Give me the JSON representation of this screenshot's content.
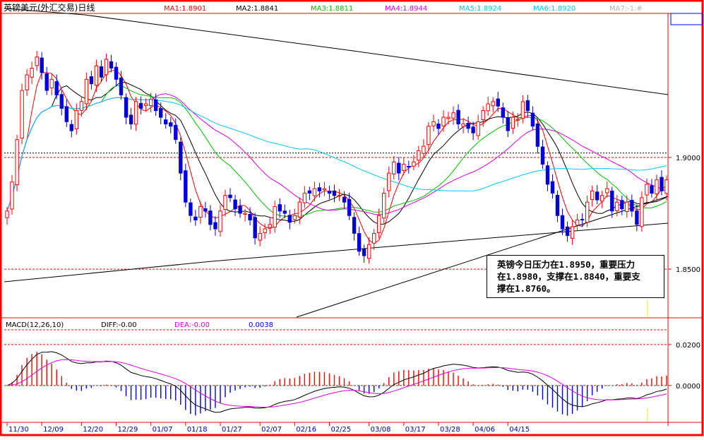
{
  "title": "英镑美元(外汇交易)日线",
  "ma_legend": [
    {
      "text": "MA1:1.8901",
      "color": "#ff0000"
    },
    {
      "text": "MA2:1.8841",
      "color": "#000000"
    },
    {
      "text": "MA3:1.8811",
      "color": "#00c000"
    },
    {
      "text": "MA4:1.8944",
      "color": "#e000e0"
    },
    {
      "text": "MA5:1.8924",
      "color": "#00c8ff"
    },
    {
      "text": "MA6:1.8920",
      "color": "#00c8ff"
    },
    {
      "text": "MA7:-1.#",
      "color": "#b4b4b4"
    }
  ],
  "macd_legend": [
    {
      "text": "MACD(12,26,10)",
      "color": "#000000"
    },
    {
      "text": "DIFF:-0.00",
      "color": "#000000"
    },
    {
      "text": "DEA:-0.00",
      "color": "#e000e0"
    },
    {
      "text": "0.0038",
      "color": "#0000ff"
    }
  ],
  "annotation": [
    "英镑今日压力在1.8950，重要压力",
    "在1.8980，支撑在1.8840，重要支",
    "撑在1.8760。"
  ],
  "colors": {
    "up": "#ff0000",
    "down": "#0000dd",
    "frame": "#ff0000",
    "ref_line": "#ff0000"
  },
  "chart_data": {
    "type": "candlestick",
    "price_axis": {
      "ticks": [
        "1.9000",
        "1.8500"
      ],
      "range": [
        1.8282,
        1.9645
      ]
    },
    "macd_axis": {
      "ticks": [
        "0.0200",
        "0.0000"
      ],
      "range": [
        -0.018,
        0.0272
      ]
    },
    "x_labels": [
      "11/30",
      "12/09",
      "12/20",
      "12/29",
      "01/07",
      "01/18",
      "01/27",
      "02/07",
      "02/16",
      "02/25",
      "03/08",
      "03/17",
      "03/28",
      "04/06",
      "04/15"
    ],
    "x_label_days": [
      0,
      7,
      15,
      22,
      29,
      36,
      43,
      51,
      58,
      65,
      73,
      80,
      87,
      94,
      101
    ],
    "closes": [
      1.876,
      1.889,
      1.908,
      1.93,
      1.937,
      1.94,
      1.945,
      1.938,
      1.93,
      1.935,
      1.928,
      1.922,
      1.916,
      1.912,
      1.921,
      1.925,
      1.935,
      1.933,
      1.941,
      1.936,
      1.944,
      1.94,
      1.935,
      1.928,
      1.918,
      1.915,
      1.925,
      1.922,
      1.924,
      1.926,
      1.921,
      1.918,
      1.915,
      1.914,
      1.908,
      1.893,
      1.88,
      1.874,
      1.872,
      1.878,
      1.876,
      1.87,
      1.868,
      1.876,
      1.883,
      1.882,
      1.877,
      1.875,
      1.875,
      1.872,
      1.864,
      1.866,
      1.868,
      1.87,
      1.878,
      1.876,
      1.875,
      1.871,
      1.874,
      1.88,
      1.884,
      1.884,
      1.886,
      1.885,
      1.886,
      1.884,
      1.883,
      1.883,
      1.88,
      1.874,
      1.866,
      1.858,
      1.856,
      1.861,
      1.866,
      1.874,
      1.884,
      1.893,
      1.898,
      1.893,
      1.897,
      1.896,
      1.898,
      1.903,
      1.905,
      1.914,
      1.916,
      1.913,
      1.918,
      1.918,
      1.92,
      1.915,
      1.915,
      1.913,
      1.911,
      1.916,
      1.921,
      1.924,
      1.925,
      1.923,
      1.918,
      1.912,
      1.918,
      1.917,
      1.925,
      1.921,
      1.914,
      1.905,
      1.897,
      1.888,
      1.884,
      1.874,
      1.868,
      1.865,
      1.869,
      1.872,
      1.872,
      1.88,
      1.885,
      1.881,
      1.883,
      1.886,
      1.876,
      1.88,
      1.877,
      1.88,
      1.876,
      1.87,
      1.882,
      1.888,
      1.884,
      1.89,
      1.885,
      1.89
    ]
  }
}
